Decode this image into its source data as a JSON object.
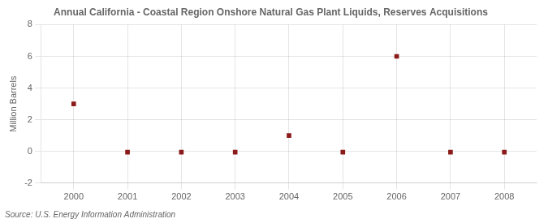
{
  "chart_data": {
    "type": "scatter",
    "title": "Annual California - Coastal Region Onshore Natural Gas Plant Liquids, Reserves Acquisitions",
    "ylabel": "Million Barrels",
    "source": "Source: U.S. Energy Information Administration",
    "x": [
      2000,
      2001,
      2002,
      2003,
      2004,
      2005,
      2006,
      2007,
      2008
    ],
    "values": [
      3.0,
      -0.05,
      -0.05,
      -0.05,
      1.0,
      -0.05,
      6.0,
      -0.05,
      -0.05
    ],
    "color": "#8b1a1a",
    "marker": "square",
    "xlim": [
      1999.4,
      2008.6
    ],
    "xticks": [
      2000,
      2001,
      2002,
      2003,
      2004,
      2005,
      2006,
      2007,
      2008
    ],
    "ylim": [
      -2,
      8
    ],
    "yticks": [
      -2,
      0,
      2,
      4,
      6,
      8
    ],
    "grid": true
  }
}
